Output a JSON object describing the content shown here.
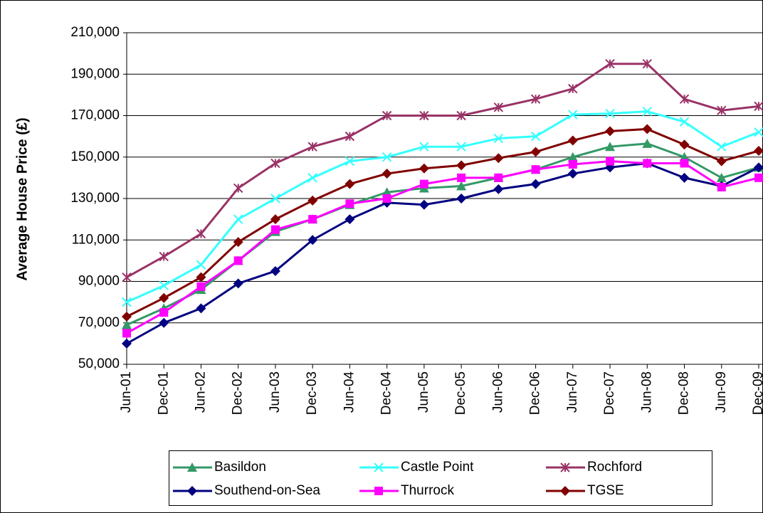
{
  "chart_data": {
    "type": "line",
    "y_label": "Average House Price (£)",
    "categories": [
      "Jun-01",
      "Dec-01",
      "Jun-02",
      "Dec-02",
      "Jun-03",
      "Dec-03",
      "Jun-04",
      "Dec-04",
      "Jun-05",
      "Dec-05",
      "Jun-06",
      "Dec-06",
      "Jun-07",
      "Dec-07",
      "Jun-08",
      "Dec-08",
      "Jun-09",
      "Dec-09"
    ],
    "series": [
      {
        "name": "Basildon",
        "color": "#339966",
        "marker": "triangle",
        "values": [
          69000,
          77000,
          86000,
          100000,
          114000,
          120000,
          127000,
          133000,
          135000,
          136000,
          140000,
          144000,
          150000,
          155000,
          156500,
          150000,
          140000,
          145000
        ]
      },
      {
        "name": "Castle Point",
        "color": "#33ffff",
        "marker": "x",
        "values": [
          80000,
          88000,
          98000,
          120000,
          130000,
          140000,
          148000,
          150000,
          155000,
          155000,
          159000,
          160000,
          170500,
          171000,
          172000,
          167000,
          155000,
          162000
        ]
      },
      {
        "name": "Rochford",
        "color": "#993366",
        "marker": "asterisk",
        "values": [
          92000,
          102000,
          113000,
          135000,
          147000,
          155000,
          160000,
          170000,
          170000,
          170000,
          174000,
          178000,
          183000,
          195000,
          195000,
          178000,
          172500,
          174500
        ]
      },
      {
        "name": "Southend-on-Sea",
        "color": "#000080",
        "marker": "diamond",
        "values": [
          60000,
          70000,
          77000,
          89000,
          95000,
          110000,
          120000,
          128000,
          127000,
          130000,
          134500,
          137000,
          142000,
          145000,
          147000,
          140000,
          136000,
          145000
        ]
      },
      {
        "name": "Thurrock",
        "color": "#ff00ff",
        "marker": "square",
        "values": [
          65000,
          75000,
          87500,
          100000,
          115000,
          120000,
          127500,
          130000,
          137000,
          140000,
          140000,
          144000,
          146500,
          148000,
          147000,
          147000,
          135500,
          140000
        ]
      },
      {
        "name": "TGSE",
        "color": "#800000",
        "marker": "diamond",
        "values": [
          73000,
          82000,
          92000,
          109000,
          120000,
          129000,
          137000,
          142000,
          144500,
          146000,
          149500,
          152500,
          158000,
          162500,
          163500,
          156000,
          148000,
          153000
        ]
      }
    ],
    "ylim": [
      50000,
      210000
    ],
    "yticks": [
      {
        "value": 50000,
        "label": "50,000"
      },
      {
        "value": 70000,
        "label": "70,000"
      },
      {
        "value": 90000,
        "label": "90,000"
      },
      {
        "value": 110000,
        "label": "110,000"
      },
      {
        "value": 130000,
        "label": "130,000"
      },
      {
        "value": 150000,
        "label": "150,000"
      },
      {
        "value": 170000,
        "label": "170,000"
      },
      {
        "value": 190000,
        "label": "190,000"
      },
      {
        "value": 210000,
        "label": "210,000"
      }
    ],
    "grid": true
  }
}
